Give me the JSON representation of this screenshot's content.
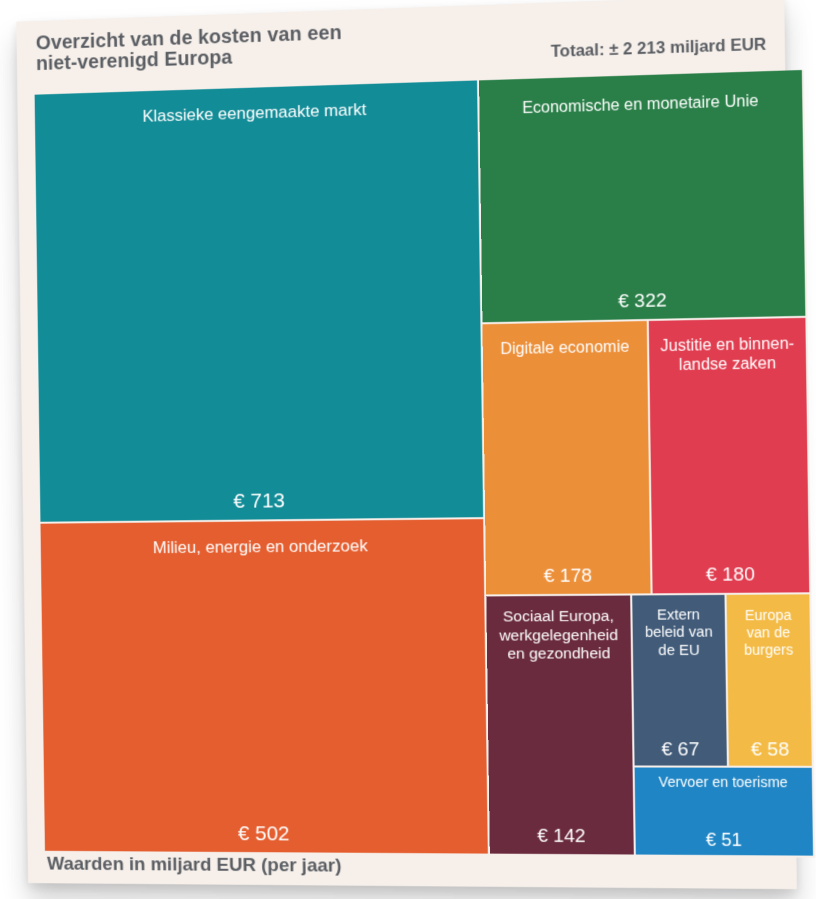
{
  "header": {
    "title_line_1": "Overzicht van de kosten van een",
    "title_line_2": "niet-verenigd Europa",
    "total": "Totaal: ± 2 213 miljard EUR"
  },
  "footer": {
    "note": "Waarden in miljard EUR (per jaar)"
  },
  "chart_data": {
    "type": "treemap",
    "title": "Overzicht van de kosten van een niet-verenigd Europa",
    "total_label": "Totaal: ± 2 213 miljard EUR",
    "unit_note": "Waarden in miljard EUR (per jaar)",
    "items": [
      {
        "name": "Klassieke eengemaakte markt",
        "value": 713,
        "value_label": "€ 713",
        "color": "#128c97"
      },
      {
        "name": "Milieu, energie en onderzoek",
        "value": 502,
        "value_label": "€ 502",
        "color": "#e55e2f"
      },
      {
        "name": "Economische en monetaire Unie",
        "value": 322,
        "value_label": "€ 322",
        "color": "#2a7f48"
      },
      {
        "name": "Digitale economie",
        "value": 178,
        "value_label": "€ 178",
        "color": "#ec8f39"
      },
      {
        "name": "Justitie en binnen-\nlandse zaken",
        "value": 180,
        "value_label": "€ 180",
        "color": "#e13d50"
      },
      {
        "name": "Sociaal Europa,\nwerkgelegenheid\nen gezondheid",
        "value": 142,
        "value_label": "€ 142",
        "color": "#6a2b3e"
      },
      {
        "name": "Extern\nbeleid van\nde EU",
        "value": 67,
        "value_label": "€ 67",
        "color": "#415b79"
      },
      {
        "name": "Europa\nvan de\nburgers",
        "value": 58,
        "value_label": "€ 58",
        "color": "#f3bb45"
      },
      {
        "name": "Vervoer en toerisme",
        "value": 51,
        "value_label": "€ 51",
        "color": "#1f85c4"
      }
    ]
  }
}
